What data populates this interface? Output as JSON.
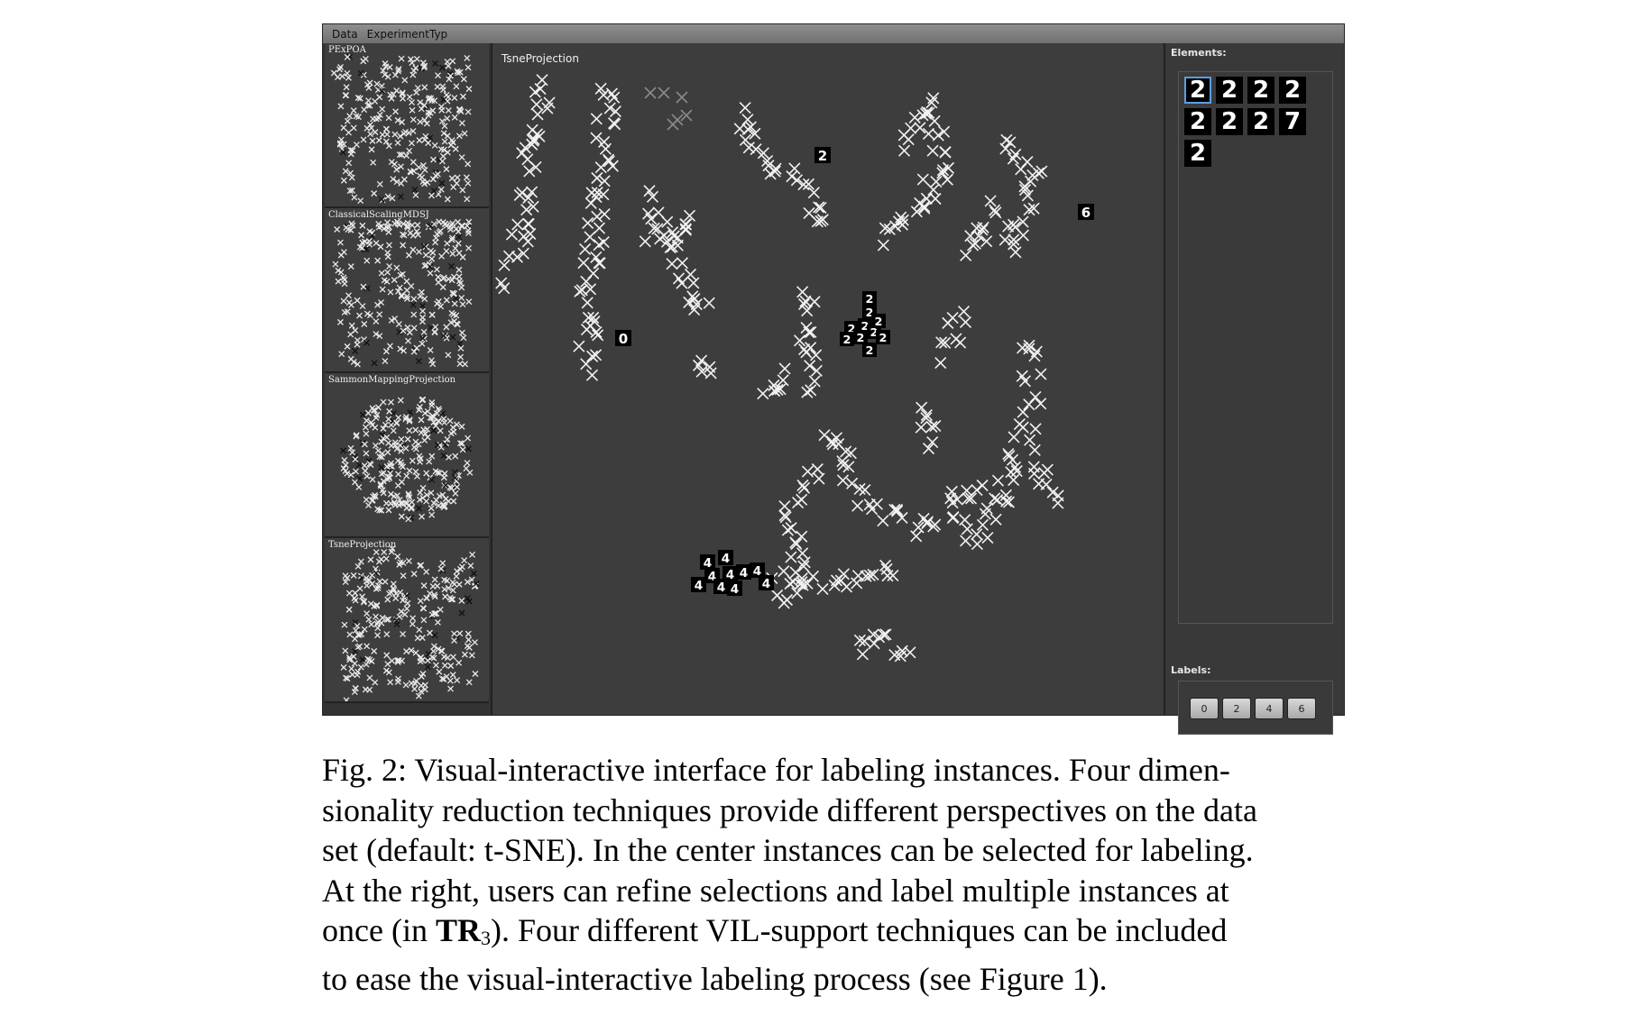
{
  "app": {
    "menu": [
      "Data",
      "ExperimentTyp"
    ],
    "thumbnails": [
      {
        "title": "PExPOA",
        "seed": 11
      },
      {
        "title": "ClassicalScalingMDSJ",
        "seed": 23
      },
      {
        "title": "SammonMappingProjection",
        "seed": 37
      },
      {
        "title": "TsneProjection",
        "seed": 53
      }
    ],
    "main_view": {
      "title": "TsneProjection",
      "marker": "×"
    },
    "elements": {
      "label": "Elements:",
      "items": [
        "2",
        "2",
        "2",
        "2",
        "2",
        "2",
        "2",
        "7",
        "2"
      ]
    },
    "labels": {
      "label": "Labels:",
      "buttons": [
        "0",
        "2",
        "4",
        "6"
      ]
    },
    "selected_samples": {
      "digit_0": "0",
      "digit_2": [
        "2",
        "2",
        "2",
        "2",
        "2",
        "2",
        "2",
        "2",
        "2",
        "2"
      ],
      "digit_4": [
        "4",
        "4",
        "4",
        "4",
        "4",
        "4",
        "4",
        "4",
        "4",
        "4"
      ],
      "digit_6": "6",
      "digit_top": "2"
    }
  },
  "caption": {
    "line1": "Fig. 2: Visual-interactive interface for labeling instances. Four dimen-",
    "line2": "sionality reduction techniques provide different perspectives on the data",
    "line3": "set (default: t-SNE). In the center instances can be selected for labeling.",
    "line4": "At the right, users can refine selections and label multiple instances at",
    "line5_pre": "once (in ",
    "line5_bold": "TR",
    "line5_sub": "3",
    "line5_post": "). Four different VIL-support techniques can be included",
    "line6": "to ease the visual-interactive labeling process (see Figure 1)."
  }
}
